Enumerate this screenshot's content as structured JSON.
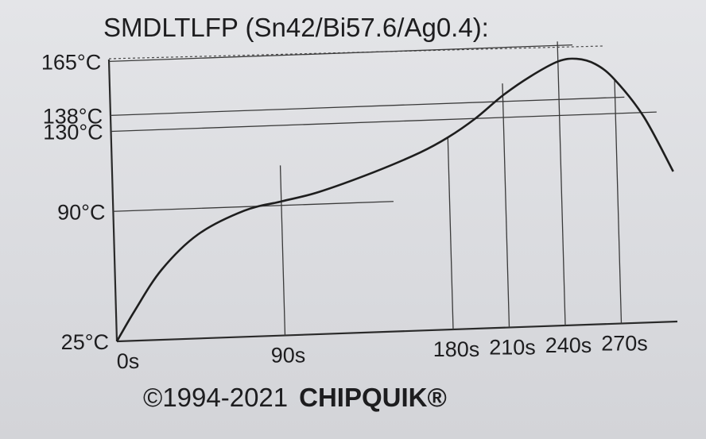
{
  "chart_data": {
    "type": "line",
    "title": "SMDLTLFP (Sn42/Bi57.6/Ag0.4):",
    "footer": {
      "copyright": "©1994-2021",
      "brand": "CHIPQUIK®"
    },
    "x_ticks": [
      {
        "value": 0,
        "label": "0s"
      },
      {
        "value": 90,
        "label": "90s"
      },
      {
        "value": 180,
        "label": "180s"
      },
      {
        "value": 210,
        "label": "210s"
      },
      {
        "value": 240,
        "label": "240s"
      },
      {
        "value": 270,
        "label": "270s"
      }
    ],
    "y_ticks": [
      {
        "value": 25,
        "label": "25°C"
      },
      {
        "value": 90,
        "label": "90°C"
      },
      {
        "value": 130,
        "label": "130°C"
      },
      {
        "value": 138,
        "label": "138°C"
      },
      {
        "value": 165,
        "label": "165°C"
      }
    ],
    "series": [
      {
        "x": [
          0,
          10,
          25,
          45,
          70,
          90,
          110,
          140,
          165,
          180,
          195,
          210,
          225,
          240,
          250,
          260,
          270,
          285,
          300
        ],
        "y": [
          25,
          40,
          60,
          77,
          88,
          92,
          96,
          105,
          114,
          121,
          130,
          141,
          150,
          157,
          158,
          155,
          147,
          128,
          100
        ]
      }
    ],
    "xlim": [
      0,
      300
    ],
    "ylim": [
      25,
      170
    ],
    "grid": true
  }
}
